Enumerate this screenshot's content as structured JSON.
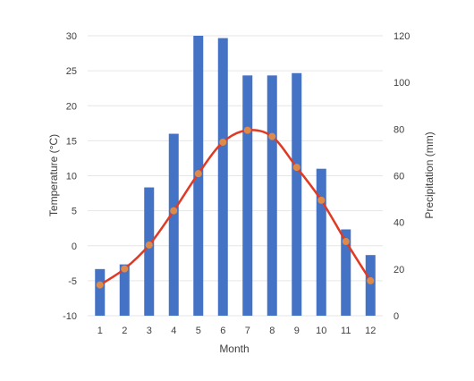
{
  "chart_data": {
    "type": "bar",
    "title": "",
    "categories": [
      "1",
      "2",
      "3",
      "4",
      "5",
      "6",
      "7",
      "8",
      "9",
      "10",
      "11",
      "12"
    ],
    "xlabel": "Month",
    "ylabel_left": "Temperature (°C)",
    "ylabel_right": "Precipitation (mm)",
    "ylim_left": [
      -10,
      30
    ],
    "ylim_right": [
      0,
      120
    ],
    "yticks_left": [
      "-10",
      "-5",
      "0",
      "5",
      "10",
      "15",
      "20",
      "25",
      "30"
    ],
    "yticks_right": [
      "0",
      "20",
      "40",
      "60",
      "80",
      "100",
      "120"
    ],
    "grid": true,
    "legend": "none",
    "series": [
      {
        "type": "bar",
        "axis": "right",
        "color": "#4472c4",
        "values": [
          20,
          22,
          55,
          78,
          120,
          119,
          103,
          103,
          104,
          63,
          37,
          26
        ]
      },
      {
        "type": "line",
        "axis": "left",
        "color": "#e03a25",
        "marker_color": "#e08a4a",
        "values": [
          -5.6,
          -3.3,
          0.1,
          5.0,
          10.3,
          14.8,
          16.5,
          15.6,
          11.2,
          6.5,
          0.6,
          -5.0
        ]
      }
    ]
  }
}
